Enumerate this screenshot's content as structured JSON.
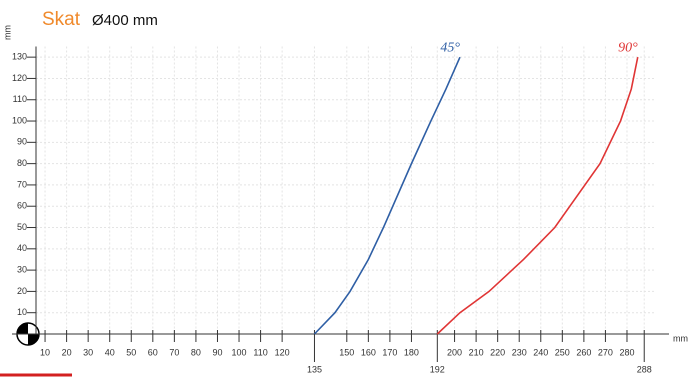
{
  "chart_data": {
    "type": "line",
    "title": "Skat",
    "subtitle": "Ø400 mm",
    "x_label": "mm",
    "y_label": "mm",
    "xlim": [
      0,
      293
    ],
    "ylim": [
      0,
      135
    ],
    "xticks": [
      10,
      20,
      30,
      40,
      50,
      60,
      70,
      80,
      90,
      100,
      110,
      120,
      135,
      150,
      160,
      170,
      180,
      192,
      200,
      210,
      220,
      230,
      240,
      250,
      260,
      270,
      280,
      288
    ],
    "yticks": [
      10,
      20,
      30,
      40,
      50,
      60,
      70,
      80,
      90,
      100,
      110,
      120,
      130
    ],
    "grid": true,
    "series": [
      {
        "name": "45°",
        "color": "#2f5fa5",
        "x": [
          135,
          144.5,
          151.5,
          160,
          167,
          180,
          189,
          196,
          202.5
        ],
        "values": [
          0,
          10,
          20,
          35,
          50,
          80,
          100,
          115,
          130
        ]
      },
      {
        "name": "90°",
        "color": "#e03535",
        "x": [
          192,
          202.5,
          216,
          232,
          246.5,
          267.5,
          277,
          282,
          285
        ],
        "values": [
          0,
          10,
          20,
          35,
          50,
          80,
          100,
          115,
          130
        ]
      }
    ]
  }
}
